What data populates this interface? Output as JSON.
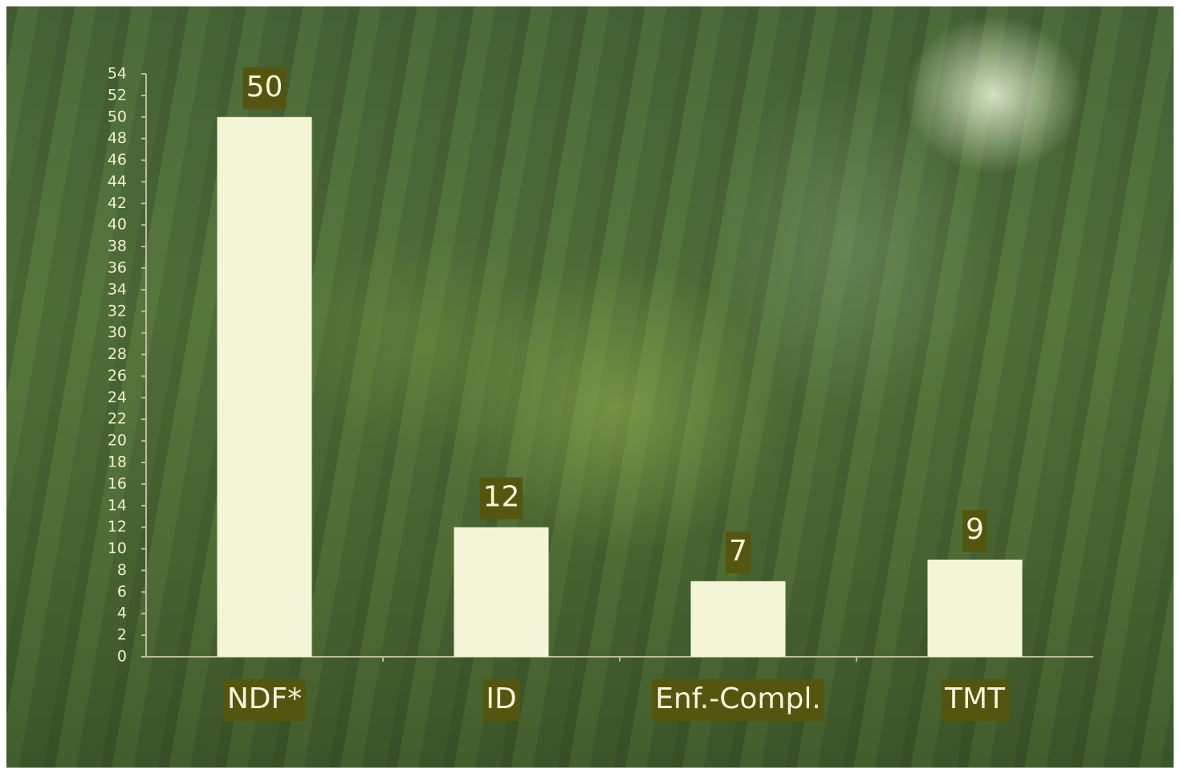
{
  "chart_data": {
    "type": "bar",
    "categories": [
      "NDF*",
      "ID",
      "Enf.-Compl.",
      "TMT"
    ],
    "values": [
      50,
      12,
      7,
      9
    ],
    "color": "#f3f5d6",
    "label_color": "#54560f",
    "ylim": [
      0,
      54
    ],
    "yticks": [
      0,
      2,
      4,
      6,
      8,
      10,
      12,
      14,
      16,
      18,
      20,
      22,
      24,
      26,
      28,
      30,
      32,
      34,
      36,
      38,
      40,
      42,
      44,
      46,
      48,
      50,
      52,
      54
    ]
  }
}
